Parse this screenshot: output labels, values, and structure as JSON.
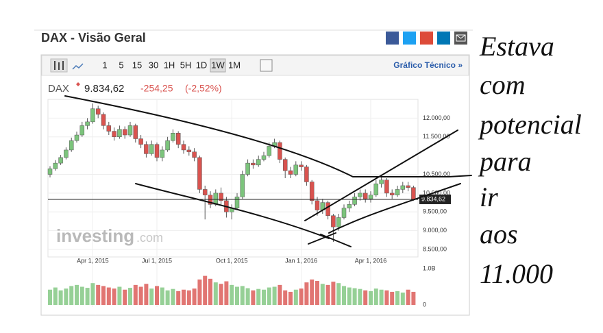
{
  "header": {
    "title": "DAX - Visão Geral"
  },
  "toolbar": {
    "intervals": [
      "1",
      "5",
      "15",
      "30",
      "1H",
      "5H",
      "1D",
      "1W",
      "1M"
    ],
    "link": "Gráfico Técnico »"
  },
  "quote": {
    "symbol": "DAX",
    "price": "9.834,62",
    "change": "-254,25",
    "change_percent": "(-2,52%)"
  },
  "watermark": {
    "brand": "investing",
    "domain": ".com"
  },
  "handwriting": {
    "lines": [
      "Estava",
      "com",
      "potencial",
      "para",
      "ir",
      "aos",
      "11.000"
    ]
  },
  "chart_data": {
    "type": "candlestick",
    "categories": [
      null,
      null,
      null,
      null,
      null,
      null,
      null,
      null,
      "Apr 1, 2015",
      null,
      null,
      null,
      null,
      null,
      null,
      null,
      null,
      null,
      null,
      null,
      "Jul 1, 2015",
      null,
      null,
      null,
      null,
      null,
      null,
      null,
      null,
      null,
      null,
      null,
      null,
      null,
      "Oct 1, 2015",
      null,
      null,
      null,
      null,
      null,
      null,
      null,
      null,
      null,
      null,
      null,
      null,
      "Jan 1, 2016",
      null,
      null,
      null,
      null,
      null,
      null,
      null,
      null,
      null,
      null,
      null,
      null,
      "Apr 1, 2016",
      null,
      null,
      null,
      null,
      null,
      null,
      null,
      null
    ],
    "open": [
      10500,
      10650,
      10800,
      10950,
      11150,
      11400,
      11550,
      11800,
      11900,
      12250,
      12100,
      11800,
      11650,
      11500,
      11700,
      11550,
      11800,
      11450,
      11300,
      11050,
      11300,
      10950,
      11150,
      11400,
      11600,
      11300,
      11150,
      11100,
      10950,
      10100,
      9950,
      9700,
      10000,
      9800,
      9500,
      9600,
      9900,
      10500,
      10800,
      10750,
      10900,
      11000,
      11250,
      11350,
      10900,
      10600,
      10500,
      10750,
      10700,
      10300,
      9800,
      9550,
      9750,
      9400,
      9100,
      9350,
      9600,
      9700,
      9900,
      10000,
      9850,
      9950,
      10250,
      10350,
      10000,
      9950,
      10100,
      10200,
      10150
    ],
    "high": [
      10720,
      10880,
      11020,
      11220,
      11480,
      11640,
      11900,
      12000,
      12390,
      12330,
      12150,
      11900,
      11750,
      11800,
      11780,
      11900,
      11850,
      11550,
      11380,
      11400,
      11350,
      11250,
      11500,
      11700,
      11650,
      11400,
      11250,
      11200,
      11000,
      10200,
      10050,
      10100,
      10150,
      9900,
      9700,
      10000,
      10600,
      10900,
      10900,
      11000,
      11100,
      11350,
      11450,
      11400,
      10950,
      10700,
      10850,
      10850,
      10750,
      10350,
      9900,
      9850,
      9800,
      9450,
      9450,
      9700,
      9800,
      10000,
      10100,
      10100,
      10050,
      10350,
      10450,
      10400,
      10100,
      10200,
      10300,
      10300,
      10200
    ],
    "low": [
      10420,
      10600,
      10750,
      10900,
      11100,
      11350,
      11500,
      11700,
      11850,
      12000,
      11700,
      11550,
      11400,
      11450,
      11450,
      11500,
      11350,
      11200,
      10950,
      11000,
      10850,
      10850,
      11100,
      11350,
      11200,
      11050,
      11000,
      10850,
      10000,
      9300,
      9600,
      9650,
      9700,
      9350,
      9300,
      9550,
      9850,
      10450,
      10650,
      10700,
      10850,
      10950,
      11200,
      10800,
      10400,
      10400,
      10450,
      10600,
      10200,
      9700,
      9400,
      9450,
      9300,
      8700,
      9000,
      9300,
      9500,
      9650,
      9800,
      9750,
      9750,
      9900,
      10150,
      9900,
      9850,
      9900,
      10000,
      10050,
      9800
    ],
    "close": [
      10650,
      10800,
      10950,
      11150,
      11400,
      11550,
      11800,
      11900,
      12250,
      12100,
      11800,
      11650,
      11500,
      11700,
      11550,
      11800,
      11450,
      11300,
      11050,
      11300,
      10950,
      11150,
      11400,
      11600,
      11300,
      11150,
      11100,
      10950,
      10100,
      9950,
      9700,
      10000,
      9800,
      9500,
      9600,
      9900,
      10500,
      10800,
      10750,
      10900,
      11000,
      11250,
      11350,
      10900,
      10600,
      10500,
      10750,
      10700,
      10300,
      9800,
      9550,
      9750,
      9400,
      9100,
      9350,
      9600,
      9700,
      9900,
      10000,
      9850,
      9950,
      10250,
      10350,
      10000,
      9950,
      10100,
      10200,
      10150,
      9835
    ],
    "up_color": "#7cc47c",
    "down_color": "#d9534f",
    "ylim": [
      8300,
      12500
    ],
    "yticks": [
      {
        "value": 12000,
        "label": "12.000,00"
      },
      {
        "value": 11500,
        "label": "11.500,00"
      },
      {
        "value": 10500,
        "label": "10.500,00"
      },
      {
        "value": 10000,
        "label": "10.000,00"
      },
      {
        "value": 9500,
        "label": "9.500,00"
      },
      {
        "value": 9000,
        "label": "9.000,00"
      },
      {
        "value": 8500,
        "label": "8.500,00"
      }
    ],
    "price_tag": {
      "value": 9834.62,
      "label": "9.834,62"
    },
    "grid": true,
    "volume": {
      "values": [
        0.42,
        0.48,
        0.4,
        0.45,
        0.52,
        0.55,
        0.5,
        0.47,
        0.6,
        0.55,
        0.52,
        0.48,
        0.45,
        0.5,
        0.42,
        0.47,
        0.55,
        0.5,
        0.58,
        0.45,
        0.52,
        0.48,
        0.4,
        0.44,
        0.38,
        0.42,
        0.4,
        0.45,
        0.7,
        0.8,
        0.72,
        0.62,
        0.58,
        0.65,
        0.55,
        0.5,
        0.52,
        0.46,
        0.4,
        0.44,
        0.42,
        0.48,
        0.5,
        0.55,
        0.4,
        0.36,
        0.42,
        0.45,
        0.62,
        0.7,
        0.66,
        0.58,
        0.55,
        0.64,
        0.6,
        0.52,
        0.48,
        0.46,
        0.44,
        0.4,
        0.38,
        0.45,
        0.42,
        0.4,
        0.36,
        0.38,
        0.34,
        0.42,
        0.36
      ],
      "ylim": [
        0,
        1
      ],
      "yticks": [
        {
          "value": 1,
          "label": "1.0B"
        },
        0
      ]
    }
  }
}
